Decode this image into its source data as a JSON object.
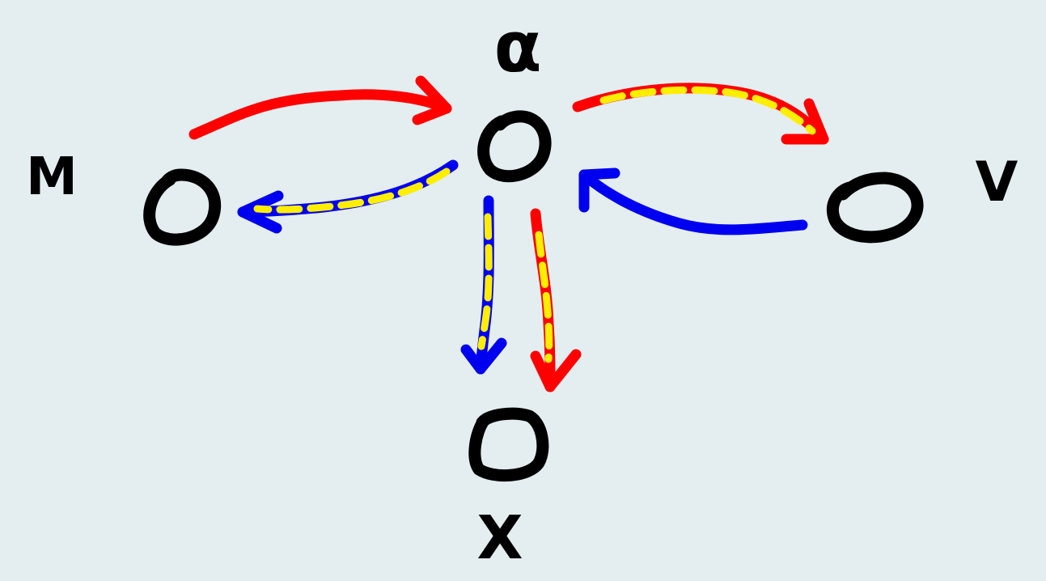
{
  "colors": {
    "background": "#e4eef0",
    "node": "#000000",
    "red_arrow": "#ff0000",
    "blue_arrow": "#0000f0",
    "highlight_dash": "#ffee00"
  },
  "nodes": {
    "alpha": {
      "label": "α"
    },
    "m": {
      "label": "M"
    },
    "v": {
      "label": "V"
    },
    "x": {
      "label": "X"
    }
  },
  "edges": [
    {
      "from": "M",
      "to": "α",
      "color": "red",
      "highlighted": false
    },
    {
      "from": "α",
      "to": "M",
      "color": "blue",
      "highlighted": true
    },
    {
      "from": "α",
      "to": "V",
      "color": "red",
      "highlighted": true
    },
    {
      "from": "V",
      "to": "α",
      "color": "blue",
      "highlighted": false
    },
    {
      "from": "α",
      "to": "X",
      "color": "blue",
      "highlighted": true
    },
    {
      "from": "α",
      "to": "X",
      "color": "red",
      "highlighted": true
    }
  ]
}
